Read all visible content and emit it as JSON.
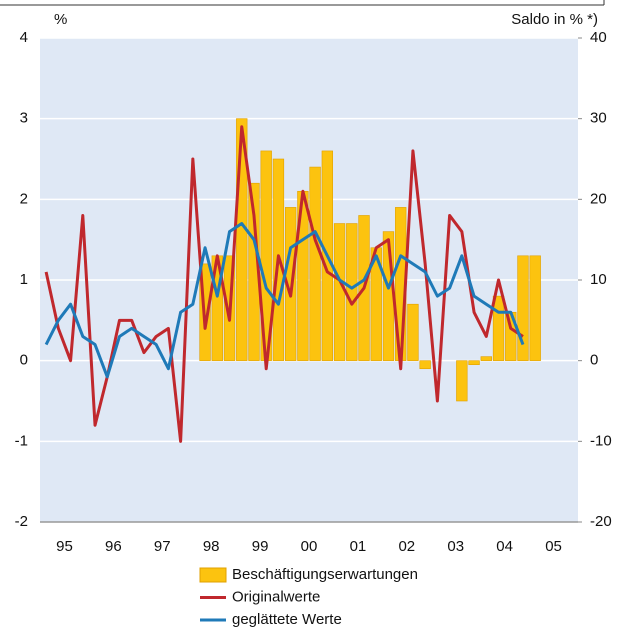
{
  "chart_data": {
    "type": "bar-line",
    "y_label": "%",
    "y2_label": "Saldo in % *)",
    "xlim": [
      1995,
      2006
    ],
    "xticks": [
      {
        "value": 1995.5,
        "label": "95"
      },
      {
        "value": 1996.5,
        "label": "96"
      },
      {
        "value": 1997.5,
        "label": "97"
      },
      {
        "value": 1998.5,
        "label": "98"
      },
      {
        "value": 1999.5,
        "label": "99"
      },
      {
        "value": 2000.5,
        "label": "00"
      },
      {
        "value": 2001.5,
        "label": "01"
      },
      {
        "value": 2002.5,
        "label": "02"
      },
      {
        "value": 2003.5,
        "label": "03"
      },
      {
        "value": 2004.5,
        "label": "04"
      },
      {
        "value": 2005.5,
        "label": "05"
      }
    ],
    "ylim": [
      -2,
      4
    ],
    "yticks": [
      -2,
      -1,
      0,
      1,
      2,
      3,
      4
    ],
    "y2lim": [
      -20,
      40
    ],
    "y2ticks": [
      -20,
      -10,
      0,
      10,
      20,
      30,
      40
    ],
    "grid": true,
    "series": [
      {
        "name": "Beschäftigungserwartungen",
        "type": "bar",
        "axis": "y2",
        "color": "#fcc30f",
        "x": [
          1998.375,
          1998.625,
          1998.875,
          1999.125,
          1999.375,
          1999.625,
          1999.875,
          2000.125,
          2000.375,
          2000.625,
          2000.875,
          2001.125,
          2001.375,
          2001.625,
          2001.875,
          2002.125,
          2002.375,
          2002.625,
          2002.875,
          2003.125,
          2003.375,
          2003.625,
          2003.875,
          2004.125,
          2004.375,
          2004.625,
          2004.875,
          2005.125
        ],
        "values": [
          12,
          13,
          13,
          30,
          22,
          26,
          25,
          19,
          21,
          24,
          26,
          17,
          17,
          18,
          14,
          16,
          19,
          7,
          -1,
          0,
          0,
          -5,
          -0.5,
          0.5,
          8,
          6,
          13,
          13
        ]
      },
      {
        "name": "Originalwerte",
        "type": "line",
        "color": "#c0282d",
        "x": [
          1995.125,
          1995.375,
          1995.625,
          1995.875,
          1996.125,
          1996.375,
          1996.625,
          1996.875,
          1997.125,
          1997.375,
          1997.625,
          1997.875,
          1998.125,
          1998.375,
          1998.625,
          1998.875,
          1999.125,
          1999.375,
          1999.625,
          1999.875,
          2000.125,
          2000.375,
          2000.625,
          2000.875,
          2001.125,
          2001.375,
          2001.625,
          2001.875,
          2002.125,
          2002.375,
          2002.625,
          2002.875,
          2003.125,
          2003.375,
          2003.625,
          2003.875,
          2004.125,
          2004.375,
          2004.625,
          2004.875
        ],
        "values": [
          1.1,
          0.4,
          0,
          1.8,
          -0.8,
          -0.2,
          0.5,
          0.5,
          0.1,
          0.3,
          0.4,
          -1,
          2.5,
          0.4,
          1.3,
          0.5,
          2.9,
          1.8,
          -0.1,
          1.3,
          0.8,
          2.1,
          1.5,
          1.1,
          1.0,
          0.7,
          0.9,
          1.4,
          1.5,
          -0.1,
          2.6,
          1.2,
          -0.5,
          1.8,
          1.6,
          0.6,
          0.3,
          1.0,
          0.4,
          0.3
        ]
      },
      {
        "name": "geglättete Werte",
        "type": "line",
        "color": "#1f7ab8",
        "x": [
          1995.125,
          1995.375,
          1995.625,
          1995.875,
          1996.125,
          1996.375,
          1996.625,
          1996.875,
          1997.125,
          1997.375,
          1997.625,
          1997.875,
          1998.125,
          1998.375,
          1998.625,
          1998.875,
          1999.125,
          1999.375,
          1999.625,
          1999.875,
          2000.125,
          2000.375,
          2000.625,
          2000.875,
          2001.125,
          2001.375,
          2001.625,
          2001.875,
          2002.125,
          2002.375,
          2002.625,
          2002.875,
          2003.125,
          2003.375,
          2003.625,
          2003.875,
          2004.125,
          2004.375,
          2004.625,
          2004.875
        ],
        "values": [
          0.2,
          0.5,
          0.7,
          0.3,
          0.2,
          -0.2,
          0.3,
          0.4,
          0.3,
          0.2,
          -0.1,
          0.6,
          0.7,
          1.4,
          0.8,
          1.6,
          1.7,
          1.5,
          0.9,
          0.7,
          1.4,
          1.5,
          1.6,
          1.3,
          1.0,
          0.9,
          1.0,
          1.3,
          0.9,
          1.3,
          1.2,
          1.1,
          0.8,
          0.9,
          1.3,
          0.8,
          0.7,
          0.6,
          0.6,
          0.2
        ]
      }
    ]
  }
}
